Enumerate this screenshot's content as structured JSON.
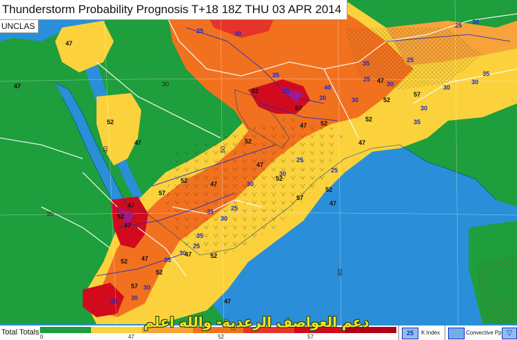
{
  "title": "Thunderstorm Probability Prognosis T+18 18Z THU 03 APR 2014",
  "classification": "UNCLAS",
  "grid_labels": {
    "lat_30": "30",
    "lat_20": "20",
    "lon_40": "40",
    "lon_50": "50",
    "lon_60": "60"
  },
  "contour_labels": {
    "k_index": [
      "25",
      "30",
      "35",
      "40",
      "25",
      "30",
      "35",
      "30",
      "25",
      "30",
      "35",
      "30",
      "25",
      "30",
      "35",
      "30",
      "25",
      "25",
      "30",
      "30",
      "25",
      "35",
      "30",
      "35",
      "25",
      "30",
      "35",
      "30",
      "30",
      "25",
      "30",
      "25"
    ],
    "total_totals": [
      "47",
      "52",
      "47",
      "47",
      "52",
      "57",
      "47",
      "52",
      "47",
      "52",
      "57",
      "52",
      "47",
      "52",
      "57",
      "47",
      "52",
      "47",
      "52",
      "47",
      "52",
      "57",
      "47",
      "52",
      "47",
      "52",
      "47",
      "57",
      "52",
      "47",
      "52",
      "47"
    ]
  },
  "legend": {
    "total_totals_label": "Total Totals",
    "scale_ticks": [
      "0",
      "47",
      "52",
      "57"
    ],
    "scale_colors": [
      "#1e9e3c",
      "#fbd23c",
      "#f7a33a",
      "#f2711f",
      "#e6342a",
      "#d10a1e",
      "#b00016"
    ],
    "k_index_label": "K Index",
    "k_index_sample": "25",
    "convective_label": "Convective Pptn"
  },
  "watermark_arabic": "دعم العواصف الرعدية- والله اعلم",
  "colors": {
    "sea": "#2a8fd8",
    "land_low": "#1e9e3c",
    "tt47": "#fbd23c",
    "tt50": "#f7a33a",
    "tt52": "#f2711f",
    "tt55": "#e6342a",
    "tt57": "#d10a1e",
    "kindex": "#1b2ac9"
  }
}
